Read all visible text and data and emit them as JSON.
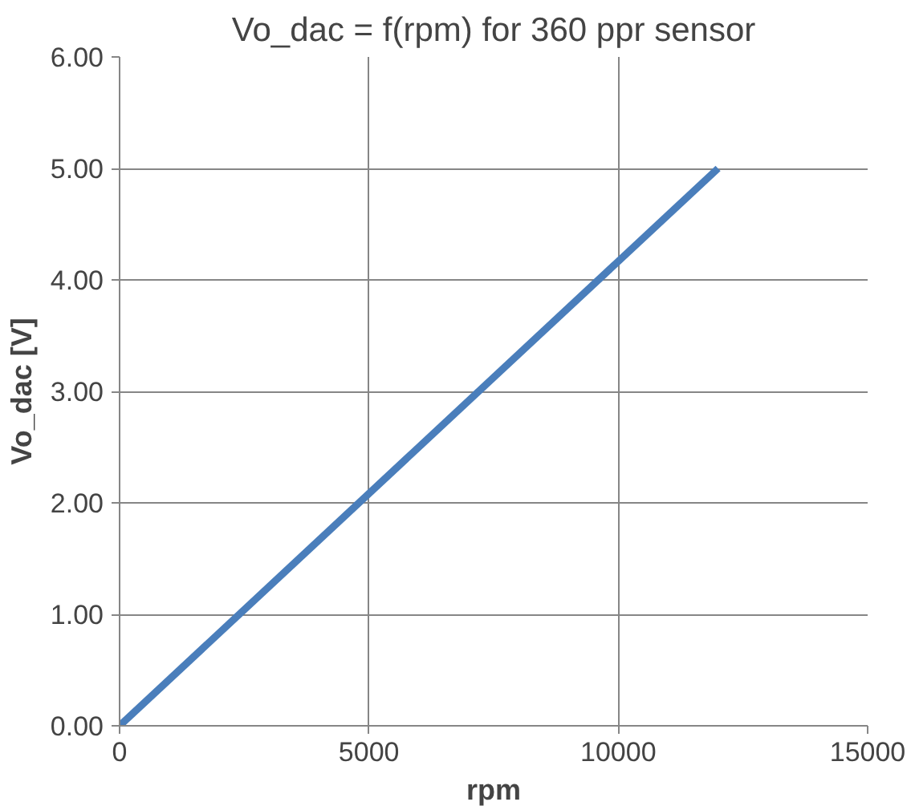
{
  "chart_data": {
    "type": "line",
    "title": "Vo_dac = f(rpm) for 360 ppr sensor",
    "xlabel": "rpm",
    "ylabel": "Vo_dac [V]",
    "x": [
      0,
      12000
    ],
    "series": [
      {
        "color": "#4a7ebb",
        "values": [
          0,
          5
        ]
      }
    ],
    "xlim": [
      0,
      15000
    ],
    "xticks": [
      0,
      5000,
      10000,
      15000
    ],
    "ylim": [
      0,
      6
    ],
    "yticks": [
      {
        "value": 0,
        "label": "0.00"
      },
      {
        "value": 1,
        "label": "1.00"
      },
      {
        "value": 2,
        "label": "2.00"
      },
      {
        "value": 3,
        "label": "3.00"
      },
      {
        "value": 4,
        "label": "4.00"
      },
      {
        "value": 5,
        "label": "5.00"
      },
      {
        "value": 6,
        "label": "6.00"
      }
    ],
    "grid": true,
    "line_style": "solid",
    "marker": "none"
  }
}
